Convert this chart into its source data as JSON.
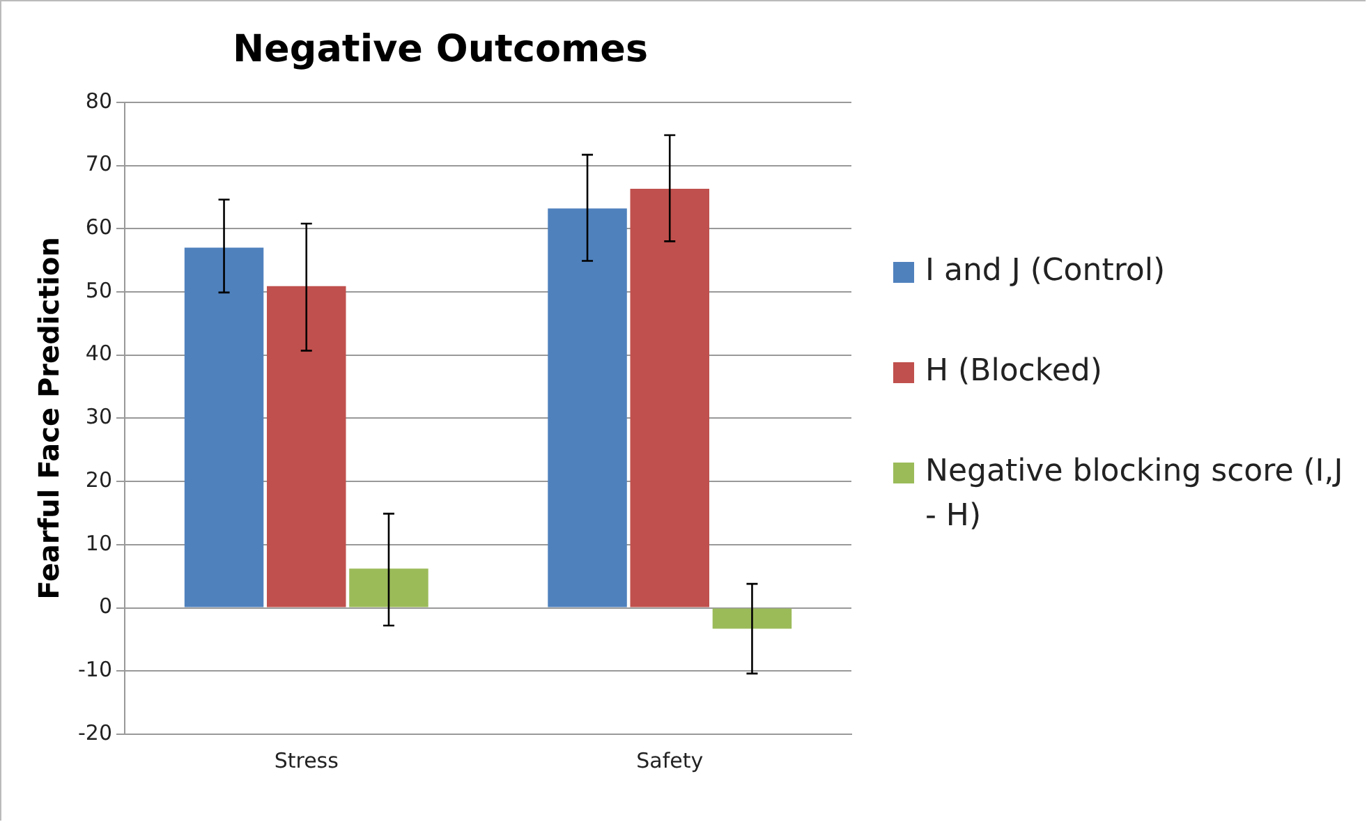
{
  "chart_data": {
    "type": "bar",
    "title": "Negative Outcomes",
    "ylabel": "Fearful Face Prediction",
    "categories": [
      "Stress",
      "Safety"
    ],
    "series": [
      {
        "name": "I and J (Control)",
        "color": "#4f81bd",
        "values": [
          57,
          63.2
        ],
        "errors": [
          [
            49.9,
            64.6
          ],
          [
            54.9,
            71.7
          ]
        ]
      },
      {
        "name": "H (Blocked)",
        "color": "#c0504d",
        "values": [
          50.9,
          66.3
        ],
        "errors": [
          [
            40.7,
            60.8
          ],
          [
            58,
            74.8
          ]
        ]
      },
      {
        "name": "Negative blocking score (I,J - H)",
        "color": "#9bbb59",
        "values": [
          6.2,
          -3.3
        ],
        "errors": [
          [
            -2.8,
            14.9
          ],
          [
            -10.4,
            3.8
          ]
        ]
      }
    ],
    "ylim": [
      -20,
      80
    ],
    "yticks": [
      -20,
      -10,
      0,
      10,
      20,
      30,
      40,
      50,
      60,
      70,
      80
    ],
    "grid": "y",
    "legend": "right"
  }
}
